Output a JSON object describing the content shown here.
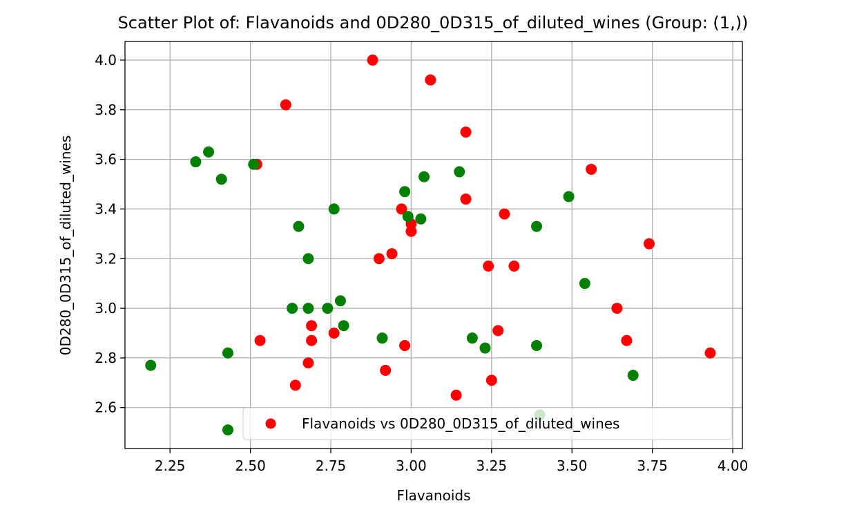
{
  "chart_data": {
    "type": "scatter",
    "title": "Scatter Plot of: Flavanoids and 0D280_0D315_of_diluted_wines (Group: (1,))",
    "xlabel": "Flavanoids",
    "ylabel": "0D280_0D315_of_diluted_wines",
    "xlim": [
      2.11,
      4.03
    ],
    "ylim": [
      2.435,
      4.075
    ],
    "xticks": [
      2.25,
      2.5,
      2.75,
      3.0,
      3.25,
      3.5,
      3.75,
      4.0
    ],
    "xtick_labels": [
      "2.25",
      "2.50",
      "2.75",
      "3.00",
      "3.25",
      "3.50",
      "3.75",
      "4.00"
    ],
    "yticks": [
      2.6,
      2.8,
      3.0,
      3.2,
      3.4,
      3.6,
      3.8,
      4.0
    ],
    "ytick_labels": [
      "2.6",
      "2.8",
      "3.0",
      "3.2",
      "3.4",
      "3.6",
      "3.8",
      "4.0"
    ],
    "grid": true,
    "legend_position": "lower-right",
    "series": [
      {
        "name": "Flavanoids vs 0D280_0D315_of_diluted_wines",
        "color": "#ff0000",
        "points": [
          [
            2.88,
            4.0
          ],
          [
            3.06,
            3.92
          ],
          [
            2.61,
            3.82
          ],
          [
            3.17,
            3.71
          ],
          [
            2.52,
            3.58
          ],
          [
            3.56,
            3.56
          ],
          [
            3.17,
            3.44
          ],
          [
            2.97,
            3.4
          ],
          [
            3.29,
            3.38
          ],
          [
            3.0,
            3.34
          ],
          [
            3.0,
            3.31
          ],
          [
            3.74,
            3.26
          ],
          [
            2.94,
            3.22
          ],
          [
            2.9,
            3.2
          ],
          [
            3.24,
            3.17
          ],
          [
            3.32,
            3.17
          ],
          [
            3.64,
            3.0
          ],
          [
            2.69,
            2.93
          ],
          [
            3.27,
            2.91
          ],
          [
            2.76,
            2.9
          ],
          [
            2.53,
            2.87
          ],
          [
            2.69,
            2.87
          ],
          [
            3.67,
            2.87
          ],
          [
            2.98,
            2.85
          ],
          [
            3.93,
            2.82
          ],
          [
            2.68,
            2.78
          ],
          [
            2.92,
            2.75
          ],
          [
            3.25,
            2.71
          ],
          [
            2.64,
            2.69
          ],
          [
            3.14,
            2.65
          ]
        ]
      },
      {
        "name": "",
        "color": "#008000",
        "points": [
          [
            2.37,
            3.63
          ],
          [
            2.33,
            3.59
          ],
          [
            2.51,
            3.58
          ],
          [
            3.15,
            3.55
          ],
          [
            3.04,
            3.53
          ],
          [
            2.41,
            3.52
          ],
          [
            2.98,
            3.47
          ],
          [
            3.49,
            3.45
          ],
          [
            2.76,
            3.4
          ],
          [
            2.99,
            3.37
          ],
          [
            3.03,
            3.36
          ],
          [
            2.65,
            3.33
          ],
          [
            3.39,
            3.33
          ],
          [
            2.68,
            3.2
          ],
          [
            3.54,
            3.1
          ],
          [
            2.78,
            3.03
          ],
          [
            2.63,
            3.0
          ],
          [
            2.68,
            3.0
          ],
          [
            2.74,
            3.0
          ],
          [
            2.79,
            2.93
          ],
          [
            2.91,
            2.88
          ],
          [
            3.19,
            2.88
          ],
          [
            3.39,
            2.85
          ],
          [
            3.23,
            2.84
          ],
          [
            2.43,
            2.82
          ],
          [
            2.19,
            2.77
          ],
          [
            3.69,
            2.73
          ],
          [
            3.4,
            2.57
          ],
          [
            2.43,
            2.51
          ]
        ]
      }
    ],
    "legend_entries": [
      "Flavanoids vs 0D280_0D315_of_diluted_wines"
    ]
  }
}
